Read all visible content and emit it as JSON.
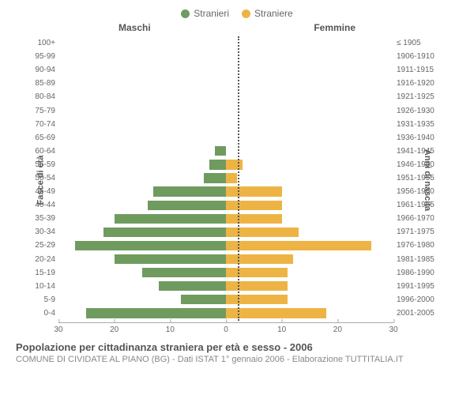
{
  "legend": {
    "male": {
      "label": "Stranieri",
      "color": "#6f9b5f"
    },
    "female": {
      "label": "Straniere",
      "color": "#edb445"
    }
  },
  "columns": {
    "left": "Maschi",
    "right": "Femmine"
  },
  "axes": {
    "left_title": "Fasce di età",
    "right_title": "Anni di nascita",
    "x_max": 30,
    "x_ticks_left": [
      30,
      20,
      10,
      0
    ],
    "x_ticks_right": [
      0,
      10,
      20,
      30
    ]
  },
  "styling": {
    "bar_height_pct": 72,
    "background": "#ffffff",
    "grid_color": "#aaaaaa",
    "centerline_color": "#555555",
    "label_color": "#666666",
    "title_color": "#555555",
    "sub_color": "#888888",
    "font": "Arial",
    "label_fontsize": 10,
    "header_fontsize": 12,
    "title_fontsize": 13,
    "sub_fontsize": 11
  },
  "rows": [
    {
      "age": "100+",
      "birth": "≤ 1905",
      "m": 0,
      "f": 0
    },
    {
      "age": "95-99",
      "birth": "1906-1910",
      "m": 0,
      "f": 0
    },
    {
      "age": "90-94",
      "birth": "1911-1915",
      "m": 0,
      "f": 0
    },
    {
      "age": "85-89",
      "birth": "1916-1920",
      "m": 0,
      "f": 0
    },
    {
      "age": "80-84",
      "birth": "1921-1925",
      "m": 0,
      "f": 0
    },
    {
      "age": "75-79",
      "birth": "1926-1930",
      "m": 0,
      "f": 0
    },
    {
      "age": "70-74",
      "birth": "1931-1935",
      "m": 0,
      "f": 0
    },
    {
      "age": "65-69",
      "birth": "1936-1940",
      "m": 0,
      "f": 0
    },
    {
      "age": "60-64",
      "birth": "1941-1945",
      "m": 2,
      "f": 0
    },
    {
      "age": "55-59",
      "birth": "1946-1950",
      "m": 3,
      "f": 3
    },
    {
      "age": "50-54",
      "birth": "1951-1955",
      "m": 4,
      "f": 2
    },
    {
      "age": "45-49",
      "birth": "1956-1960",
      "m": 13,
      "f": 10
    },
    {
      "age": "40-44",
      "birth": "1961-1965",
      "m": 14,
      "f": 10
    },
    {
      "age": "35-39",
      "birth": "1966-1970",
      "m": 20,
      "f": 10
    },
    {
      "age": "30-34",
      "birth": "1971-1975",
      "m": 22,
      "f": 13
    },
    {
      "age": "25-29",
      "birth": "1976-1980",
      "m": 27,
      "f": 26
    },
    {
      "age": "20-24",
      "birth": "1981-1985",
      "m": 20,
      "f": 12
    },
    {
      "age": "15-19",
      "birth": "1986-1990",
      "m": 15,
      "f": 11
    },
    {
      "age": "10-14",
      "birth": "1991-1995",
      "m": 12,
      "f": 11
    },
    {
      "age": "5-9",
      "birth": "1996-2000",
      "m": 8,
      "f": 11
    },
    {
      "age": "0-4",
      "birth": "2001-2005",
      "m": 25,
      "f": 18
    }
  ],
  "footer": {
    "title": "Popolazione per cittadinanza straniera per età e sesso - 2006",
    "sub": "COMUNE DI CIVIDATE AL PIANO (BG) - Dati ISTAT 1° gennaio 2006 - Elaborazione TUTTITALIA.IT"
  }
}
